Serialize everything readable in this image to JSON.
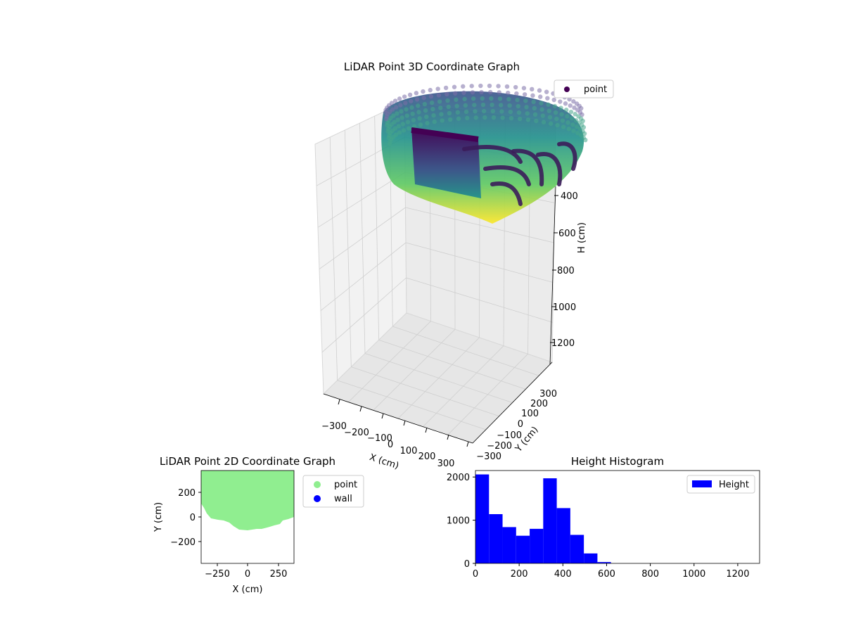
{
  "chart_data": [
    {
      "type": "scatter3d",
      "title": "LiDAR Point 3D Coordinate Graph",
      "xlabel": "X (cm)",
      "ylabel": "Y (cm)",
      "zlabel": "H (cm)",
      "x_ticks": [
        "−300",
        "−200",
        "−100",
        "0",
        "100",
        "200",
        "300"
      ],
      "y_ticks": [
        "−300",
        "−200",
        "−100",
        "0",
        "100",
        "200",
        "300"
      ],
      "z_ticks": [
        "400",
        "600",
        "800",
        "1000",
        "1200"
      ],
      "xlim": [
        -350,
        350
      ],
      "ylim": [
        -350,
        350
      ],
      "zlim": [
        1300,
        0
      ],
      "inverted_z": true,
      "legend": [
        "point"
      ],
      "legend_position": "top-right",
      "colormap": "viridis",
      "grid": true
    },
    {
      "type": "scatter",
      "title": "LiDAR Point 2D Coordinate Graph",
      "xlabel": "X (cm)",
      "ylabel": "Y (cm)",
      "x_ticks": [
        "−250",
        "0",
        "250"
      ],
      "y_ticks": [
        "200",
        "0",
        "−200"
      ],
      "xlim": [
        -380,
        380
      ],
      "ylim": [
        -380,
        380
      ],
      "series": [
        {
          "name": "point",
          "color": "#90ee90"
        },
        {
          "name": "wall",
          "color": "#0000ff"
        }
      ],
      "legend_position": "outside-right"
    },
    {
      "type": "bar",
      "title": "Height Histogram",
      "xlabel": "",
      "ylabel": "",
      "x_ticks": [
        "0",
        "200",
        "400",
        "600",
        "800",
        "1000",
        "1200"
      ],
      "y_ticks": [
        "0",
        "1000",
        "2000"
      ],
      "xlim": [
        0,
        1300
      ],
      "ylim": [
        0,
        2150
      ],
      "bin_width": 62,
      "bins": [
        0,
        62,
        124,
        186,
        248,
        310,
        372,
        434,
        496,
        558
      ],
      "values": [
        2060,
        1140,
        840,
        640,
        800,
        1970,
        1280,
        660,
        230,
        30
      ],
      "series": [
        {
          "name": "Height",
          "color": "#0000ff"
        }
      ],
      "legend_position": "top-right"
    }
  ]
}
